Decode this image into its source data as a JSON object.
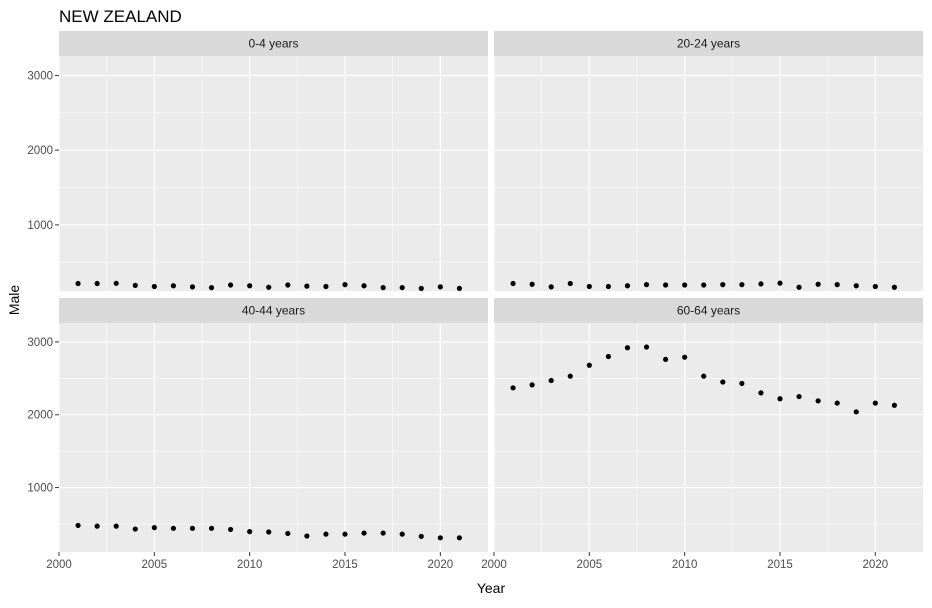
{
  "chart_data": {
    "type": "scatter",
    "title": "NEW ZEALAND",
    "xlabel": "Year",
    "ylabel": "Male",
    "xlim": [
      2000,
      2022.5
    ],
    "ylim": [
      115,
      3260
    ],
    "x_ticks": [
      2000,
      2005,
      2010,
      2015,
      2020
    ],
    "y_ticks": [
      1000,
      2000,
      3000
    ],
    "grid": true,
    "facets": [
      {
        "label": "0-4 years",
        "x": [
          2001,
          2002,
          2003,
          2004,
          2005,
          2006,
          2007,
          2008,
          2009,
          2010,
          2011,
          2012,
          2013,
          2014,
          2015,
          2016,
          2017,
          2018,
          2019,
          2020,
          2021
        ],
        "y": [
          215,
          215,
          218,
          190,
          175,
          185,
          170,
          160,
          195,
          185,
          165,
          195,
          180,
          175,
          200,
          185,
          160,
          160,
          150,
          170,
          150
        ]
      },
      {
        "label": "20-24 years",
        "x": [
          2001,
          2002,
          2003,
          2004,
          2005,
          2006,
          2007,
          2008,
          2009,
          2010,
          2011,
          2012,
          2013,
          2014,
          2015,
          2016,
          2017,
          2018,
          2019,
          2020,
          2021
        ],
        "y": [
          215,
          205,
          170,
          215,
          175,
          175,
          185,
          200,
          195,
          195,
          195,
          200,
          200,
          210,
          220,
          165,
          205,
          200,
          185,
          175,
          165
        ]
      },
      {
        "label": "40-44 years",
        "x": [
          2001,
          2002,
          2003,
          2004,
          2005,
          2006,
          2007,
          2008,
          2009,
          2010,
          2011,
          2012,
          2013,
          2014,
          2015,
          2016,
          2017,
          2018,
          2019,
          2020,
          2021
        ],
        "y": [
          480,
          470,
          470,
          430,
          450,
          440,
          440,
          440,
          425,
          395,
          390,
          370,
          335,
          360,
          360,
          375,
          375,
          360,
          330,
          310,
          310
        ]
      },
      {
        "label": "60-64 years",
        "x": [
          2001,
          2002,
          2003,
          2004,
          2005,
          2006,
          2007,
          2008,
          2009,
          2010,
          2011,
          2012,
          2013,
          2014,
          2015,
          2016,
          2017,
          2018,
          2019,
          2020,
          2021
        ],
        "y": [
          2370,
          2410,
          2470,
          2530,
          2680,
          2800,
          2920,
          2930,
          2760,
          2790,
          2530,
          2450,
          2430,
          2300,
          2220,
          2250,
          2190,
          2160,
          2040,
          2160,
          2130
        ]
      }
    ]
  }
}
